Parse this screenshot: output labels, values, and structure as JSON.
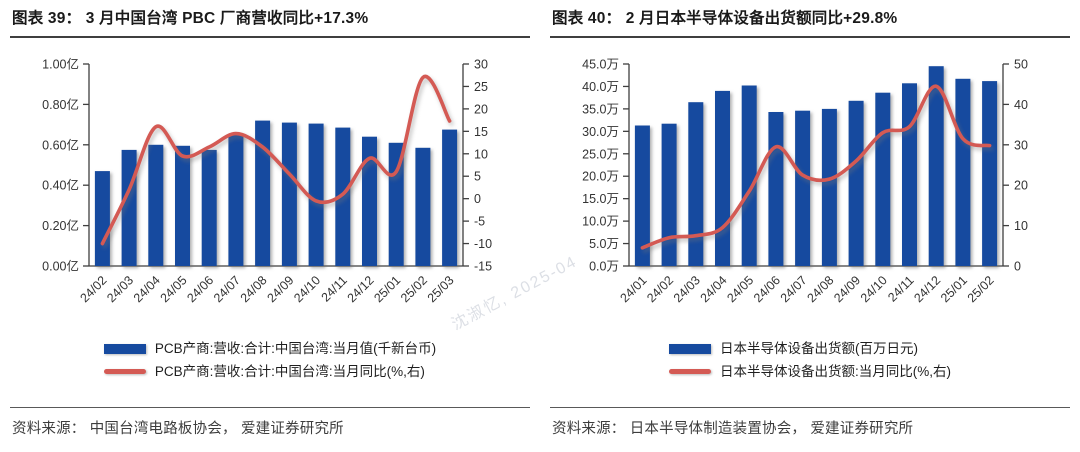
{
  "watermark": {
    "text": "沈淑忆, 2025-04"
  },
  "panels": [
    {
      "title": "图表 39： 3 月中国台湾 PBC 厂商营收同比+17.3%",
      "source": "资料来源： 中国台湾电路板协会， 爱建证券研究所",
      "colors": {
        "bar": "#164A9F",
        "line": "#D45A54"
      },
      "chart_data": {
        "type": "bar+line",
        "categories": [
          "24/02",
          "24/03",
          "24/04",
          "24/05",
          "24/06",
          "24/07",
          "24/08",
          "24/09",
          "24/10",
          "24/11",
          "24/12",
          "25/01",
          "25/02",
          "25/03"
        ],
        "series": [
          {
            "name": "PCB产商:营收:合计:中国台湾:当月值(千新台币)",
            "type": "bar",
            "axis": "left",
            "values": [
              0.47,
              0.575,
              0.6,
              0.595,
              0.575,
              0.655,
              0.72,
              0.71,
              0.705,
              0.685,
              0.64,
              0.61,
              0.585,
              0.675
            ]
          },
          {
            "name": "PCB产商:营收:合计:中国台湾:当月同比(%,右)",
            "type": "line",
            "axis": "right",
            "values": [
              -10,
              2,
              16,
              9.5,
              11.5,
              14.5,
              11.5,
              5.5,
              -0.5,
              1,
              9,
              6,
              27,
              17.3
            ]
          }
        ],
        "left_axis": {
          "min": 0,
          "max": 1,
          "tick_labels": [
            "0.00亿",
            "0.20亿",
            "0.40亿",
            "0.60亿",
            "0.80亿",
            "1.00亿"
          ]
        },
        "right_axis": {
          "min": -15,
          "max": 30,
          "tick_labels": [
            "-15",
            "-10",
            "-5",
            "0",
            "5",
            "10",
            "15",
            "20",
            "25",
            "30"
          ]
        },
        "grid": false,
        "legend_position": "bottom"
      }
    },
    {
      "title": "图表 40： 2 月日本半导体设备出货额同比+29.8%",
      "source": "资料来源： 日本半导体制造装置协会， 爱建证券研究所",
      "colors": {
        "bar": "#164A9F",
        "line": "#D45A54"
      },
      "chart_data": {
        "type": "bar+line",
        "categories": [
          "24/01",
          "24/02",
          "24/03",
          "24/04",
          "24/05",
          "24/06",
          "24/07",
          "24/08",
          "24/09",
          "24/10",
          "24/11",
          "24/12",
          "25/01",
          "25/02"
        ],
        "series": [
          {
            "name": "日本半导体设备出货额(百万日元)",
            "type": "bar",
            "axis": "left",
            "values": [
              31.3,
              31.7,
              36.5,
              39.0,
              40.2,
              34.3,
              34.6,
              35.0,
              36.8,
              38.6,
              40.7,
              44.5,
              41.7,
              41.2
            ]
          },
          {
            "name": "日本半导体设备出货额:当月同比(%,右)",
            "type": "line",
            "axis": "right",
            "values": [
              4.5,
              7,
              7.5,
              9.5,
              18.5,
              29.5,
              22.5,
              21.5,
              26,
              33,
              34.5,
              44.5,
              31.5,
              29.8
            ]
          }
        ],
        "left_axis": {
          "min": 0,
          "max": 45,
          "tick_labels": [
            "0.0万",
            "5.0万",
            "10.0万",
            "15.0万",
            "20.0万",
            "25.0万",
            "30.0万",
            "35.0万",
            "40.0万",
            "45.0万"
          ]
        },
        "right_axis": {
          "min": 0,
          "max": 50,
          "tick_labels": [
            "0",
            "10",
            "20",
            "30",
            "40",
            "50"
          ]
        },
        "grid": false,
        "legend_position": "bottom"
      }
    }
  ]
}
